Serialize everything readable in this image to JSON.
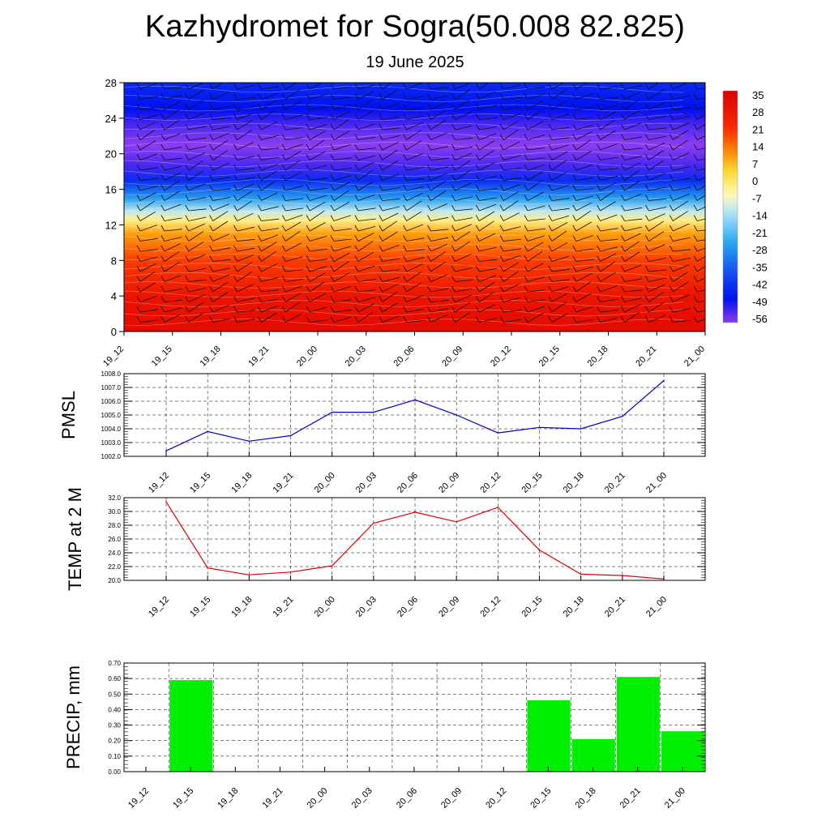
{
  "title": "Kazhydromet for Sogra(50.008 82.825)",
  "subtitle": "19 June 2025",
  "chart_data": [
    {
      "type": "heatmap",
      "x_ticks": [
        "19_12",
        "19_15",
        "19_18",
        "19_21",
        "20_00",
        "20_03",
        "20_06",
        "20_09",
        "20_12",
        "20_15",
        "20_18",
        "20_21",
        "21_00"
      ],
      "y_ticks": [
        "0",
        "4",
        "8",
        "12",
        "16",
        "20",
        "24",
        "28"
      ],
      "ylim": [
        0,
        28
      ],
      "colorbar_labels": [
        "35",
        "28",
        "21",
        "14",
        "7",
        "0",
        "-7",
        "-14",
        "-21",
        "-28",
        "-35",
        "-42",
        "-49",
        "-56"
      ],
      "colorbar_range": [
        -60,
        38
      ],
      "temperature_profile": [
        {
          "level": 0,
          "value": 34
        },
        {
          "level": 4,
          "value": 30
        },
        {
          "level": 8,
          "value": 20
        },
        {
          "level": 11,
          "value": 10
        },
        {
          "level": 12.5,
          "value": -2
        },
        {
          "level": 13.5,
          "value": -12
        },
        {
          "level": 15,
          "value": -28
        },
        {
          "level": 17,
          "value": -45
        },
        {
          "level": 19,
          "value": -56
        },
        {
          "level": 21,
          "value": -60
        },
        {
          "level": 23,
          "value": -56
        },
        {
          "level": 25,
          "value": -50
        },
        {
          "level": 28,
          "value": -45
        }
      ],
      "colors": {
        "warm": "#e00000",
        "orange": "#ff8c00",
        "yellow": "#fff2a8",
        "cyan": "#2ab0f0",
        "blue": "#0010f0",
        "violet": "#8a3cf0"
      }
    },
    {
      "type": "line",
      "ylabel": "PMSL",
      "categories": [
        "19_12",
        "19_15",
        "19_18",
        "19_21",
        "20_00",
        "20_03",
        "20_06",
        "20_09",
        "20_12",
        "20_15",
        "20_18",
        "20_21",
        "21_00"
      ],
      "values": [
        1002.4,
        1003.8,
        1003.1,
        1003.5,
        1005.2,
        1005.2,
        1006.1,
        1005.0,
        1003.7,
        1004.1,
        1004.0,
        1004.9,
        1007.5
      ],
      "ylim": [
        1002.0,
        1008.0
      ],
      "y_ticks": [
        "1002.0",
        "1003.0",
        "1004.0",
        "1005.0",
        "1006.0",
        "1007.0",
        "1008.0"
      ],
      "color": "#0000cc",
      "grid": true
    },
    {
      "type": "line",
      "ylabel": "TEMP at 2 M",
      "categories": [
        "19_12",
        "19_15",
        "19_18",
        "19_21",
        "20_00",
        "20_03",
        "20_06",
        "20_09",
        "20_12",
        "20_15",
        "20_18",
        "20_21",
        "21_00"
      ],
      "values": [
        31.4,
        21.8,
        20.8,
        21.2,
        22.1,
        28.3,
        29.9,
        28.5,
        30.6,
        24.4,
        20.9,
        20.7,
        20.2
      ],
      "ylim": [
        20.0,
        32.0
      ],
      "y_ticks": [
        "20.0",
        "22.0",
        "24.0",
        "26.0",
        "28.0",
        "30.0",
        "32.0"
      ],
      "color": "#dd0000",
      "grid": true
    },
    {
      "type": "bar",
      "ylabel": "PRECIP, mm",
      "categories": [
        "19_12",
        "19_15",
        "19_18",
        "19_21",
        "20_00",
        "20_03",
        "20_06",
        "20_09",
        "20_12",
        "20_15",
        "20_18",
        "20_21",
        "21_00"
      ],
      "values": [
        0.0,
        0.59,
        0.0,
        0.0,
        0.0,
        0.0,
        0.0,
        0.0,
        0.0,
        0.46,
        0.21,
        0.61,
        0.26
      ],
      "ylim": [
        0.0,
        0.7
      ],
      "y_ticks": [
        "0.00",
        "0.10",
        "0.20",
        "0.30",
        "0.40",
        "0.50",
        "0.60",
        "0.70"
      ],
      "color": "#00ee00",
      "grid": true
    }
  ]
}
